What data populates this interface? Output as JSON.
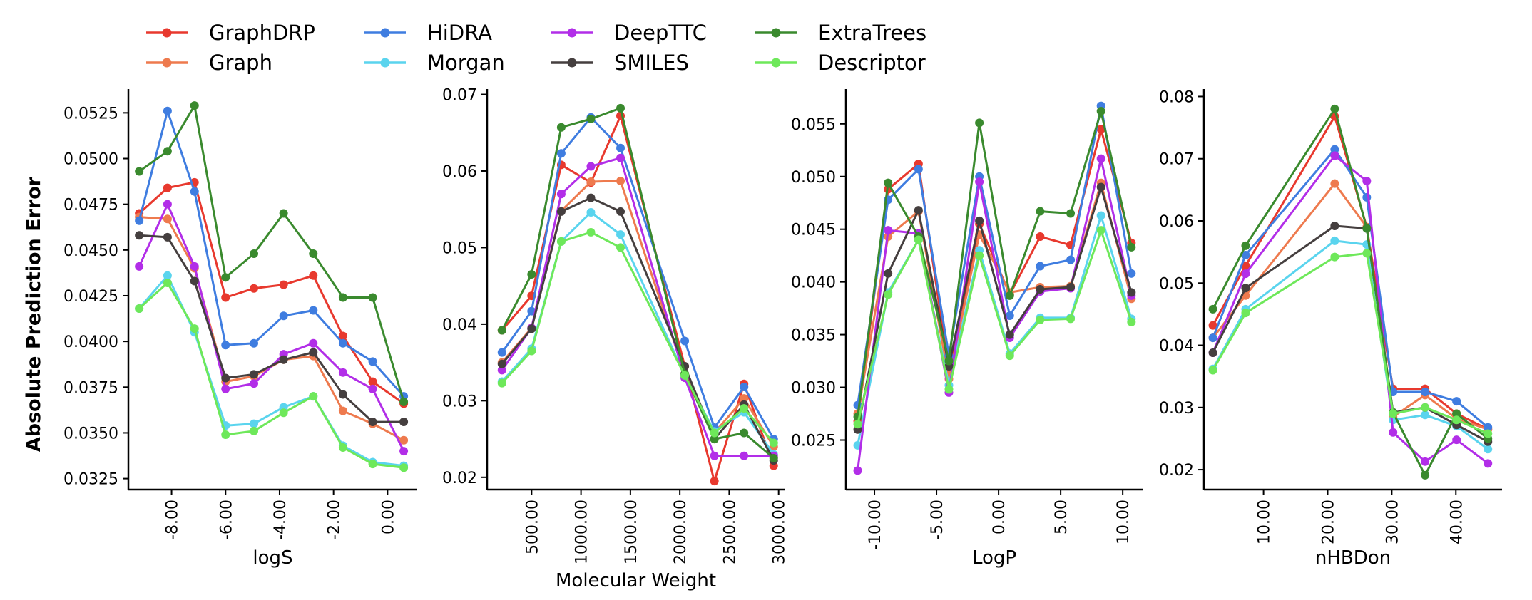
{
  "figure": {
    "ylabel": "Absolute Prediction Error"
  },
  "series_styles": [
    {
      "name": "GraphDRP",
      "color": "#e8392e"
    },
    {
      "name": "Graph",
      "color": "#ee7a4e"
    },
    {
      "name": "HiDRA",
      "color": "#3f7de0"
    },
    {
      "name": "Morgan",
      "color": "#5ad4ee"
    },
    {
      "name": "DeepTTC",
      "color": "#b22ee8"
    },
    {
      "name": "SMILES",
      "color": "#453f3f"
    },
    {
      "name": "ExtraTrees",
      "color": "#3a8a2e"
    },
    {
      "name": "Descriptor",
      "color": "#6ee85a"
    }
  ],
  "chart_data": [
    {
      "type": "line",
      "xlabel": "logS",
      "ylabel": "Absolute Prediction Error",
      "xlim": [
        -9.6,
        1.1
      ],
      "ylim": [
        0.0319,
        0.0538
      ],
      "xticks": [
        -8,
        -6,
        -4,
        -2,
        0
      ],
      "xtick_labels": [
        "-8.00",
        "-6.00",
        "-4.00",
        "-2.00",
        "0.00"
      ],
      "yticks": [
        0.0325,
        0.035,
        0.0375,
        0.04,
        0.0425,
        0.045,
        0.0475,
        0.05,
        0.0525
      ],
      "ytick_labels": [
        "0.0325",
        "0.0350",
        "0.0375",
        "0.0400",
        "0.0425",
        "0.0450",
        "0.0475",
        "0.0500",
        "0.0525"
      ],
      "x": [
        -9.2,
        -8.15,
        -7.15,
        -6.0,
        -4.95,
        -3.85,
        -2.75,
        -1.65,
        -0.55,
        0.6
      ],
      "series": [
        {
          "name": "GraphDRP",
          "values": [
            0.047,
            0.0484,
            0.0487,
            0.0424,
            0.0429,
            0.0431,
            0.0436,
            0.0403,
            0.0378,
            0.0366
          ]
        },
        {
          "name": "Graph",
          "values": [
            0.0468,
            0.0467,
            0.044,
            0.0378,
            0.0381,
            0.039,
            0.0392,
            0.0362,
            0.0355,
            0.0346
          ]
        },
        {
          "name": "HiDRA",
          "values": [
            0.0466,
            0.0526,
            0.0482,
            0.0398,
            0.0399,
            0.0414,
            0.0417,
            0.0399,
            0.0389,
            0.037
          ]
        },
        {
          "name": "Morgan",
          "values": [
            0.0418,
            0.0436,
            0.0405,
            0.0354,
            0.0355,
            0.0364,
            0.037,
            0.0343,
            0.0334,
            0.0332
          ]
        },
        {
          "name": "DeepTTC",
          "values": [
            0.0441,
            0.0475,
            0.0441,
            0.0374,
            0.0377,
            0.0393,
            0.0399,
            0.0383,
            0.0374,
            0.034
          ]
        },
        {
          "name": "SMILES",
          "values": [
            0.0458,
            0.0457,
            0.0433,
            0.038,
            0.0382,
            0.039,
            0.0394,
            0.0371,
            0.0356,
            0.0356
          ]
        },
        {
          "name": "ExtraTrees",
          "values": [
            0.0493,
            0.0504,
            0.0529,
            0.0435,
            0.0448,
            0.047,
            0.0448,
            0.0424,
            0.0424,
            0.0367
          ]
        },
        {
          "name": "Descriptor",
          "values": [
            0.0418,
            0.0432,
            0.0407,
            0.0349,
            0.0351,
            0.0361,
            0.037,
            0.0342,
            0.0333,
            0.0331
          ]
        }
      ]
    },
    {
      "type": "line",
      "xlabel": "Molecular Weight",
      "ylabel": "",
      "xlim": [
        50,
        3060
      ],
      "ylim": [
        0.0184,
        0.0707
      ],
      "xticks": [
        500,
        1000,
        1500,
        2000,
        2500,
        3000
      ],
      "xtick_labels": [
        "500.00",
        "1000.00",
        "1500.00",
        "2000.00",
        "2500.00",
        "3000.00"
      ],
      "yticks": [
        0.02,
        0.03,
        0.04,
        0.05,
        0.06,
        0.07
      ],
      "ytick_labels": [
        "0.02",
        "0.03",
        "0.04",
        "0.05",
        "0.06",
        "0.07"
      ],
      "x": [
        200,
        500,
        800,
        1100,
        1400,
        2050,
        2350,
        2650,
        2950
      ],
      "series": [
        {
          "name": "GraphDRP",
          "values": [
            0.0392,
            0.0437,
            0.0608,
            0.0585,
            0.0672,
            0.0345,
            0.0195,
            0.0322,
            0.0215
          ]
        },
        {
          "name": "Graph",
          "values": [
            0.035,
            0.0395,
            0.0548,
            0.0586,
            0.0587,
            0.0335,
            0.0258,
            0.0303,
            0.024
          ]
        },
        {
          "name": "HiDRA",
          "values": [
            0.0363,
            0.0417,
            0.0623,
            0.067,
            0.063,
            0.0378,
            0.0265,
            0.0318,
            0.025
          ]
        },
        {
          "name": "Morgan",
          "values": [
            0.0325,
            0.0368,
            0.0508,
            0.0546,
            0.0517,
            0.0333,
            0.026,
            0.0285,
            0.023
          ]
        },
        {
          "name": "DeepTTC",
          "values": [
            0.034,
            0.0395,
            0.057,
            0.0606,
            0.0617,
            0.033,
            0.0228,
            0.0228,
            0.0228
          ]
        },
        {
          "name": "SMILES",
          "values": [
            0.0348,
            0.0394,
            0.0547,
            0.0565,
            0.0547,
            0.0345,
            0.025,
            0.0295,
            0.0222
          ]
        },
        {
          "name": "ExtraTrees",
          "values": [
            0.0392,
            0.0465,
            0.0657,
            0.0668,
            0.0682,
            0.0335,
            0.025,
            0.0258,
            0.0225
          ]
        },
        {
          "name": "Descriptor",
          "values": [
            0.0323,
            0.0365,
            0.0508,
            0.052,
            0.05,
            0.0333,
            0.0258,
            0.029,
            0.0245
          ]
        }
      ]
    },
    {
      "type": "line",
      "xlabel": "LogP",
      "ylabel": "",
      "xlim": [
        -12.3,
        11.6
      ],
      "ylim": [
        0.0203,
        0.0583
      ],
      "xticks": [
        -10,
        -5,
        0,
        5,
        10
      ],
      "xtick_labels": [
        "-10.00",
        "-5.00",
        "0.00",
        "5.00",
        "10.00"
      ],
      "yticks": [
        0.025,
        0.03,
        0.035,
        0.04,
        0.045,
        0.05,
        0.055
      ],
      "ytick_labels": [
        "0.025",
        "0.030",
        "0.035",
        "0.040",
        "0.045",
        "0.050",
        "0.055"
      ],
      "x": [
        -11.35,
        -8.9,
        -6.45,
        -4.0,
        -1.55,
        0.9,
        3.35,
        5.8,
        8.25,
        10.7
      ],
      "series": [
        {
          "name": "GraphDRP",
          "values": [
            0.0268,
            0.0488,
            0.0512,
            0.0315,
            0.0455,
            0.0388,
            0.0443,
            0.0435,
            0.0545,
            0.0437
          ]
        },
        {
          "name": "Graph",
          "values": [
            0.0275,
            0.0443,
            0.0467,
            0.0308,
            0.0445,
            0.039,
            0.0395,
            0.0396,
            0.0494,
            0.0384
          ]
        },
        {
          "name": "HiDRA",
          "values": [
            0.0283,
            0.0478,
            0.0507,
            0.033,
            0.05,
            0.0368,
            0.0415,
            0.0421,
            0.0567,
            0.0408
          ]
        },
        {
          "name": "Morgan",
          "values": [
            0.0245,
            0.039,
            0.044,
            0.0302,
            0.043,
            0.0332,
            0.0366,
            0.0366,
            0.0463,
            0.0365
          ]
        },
        {
          "name": "DeepTTC",
          "values": [
            0.0221,
            0.0449,
            0.0446,
            0.0295,
            0.0495,
            0.0347,
            0.0391,
            0.0394,
            0.0517,
            0.0387
          ]
        },
        {
          "name": "SMILES",
          "values": [
            0.026,
            0.0408,
            0.0468,
            0.032,
            0.0458,
            0.035,
            0.0393,
            0.0395,
            0.049,
            0.039
          ]
        },
        {
          "name": "ExtraTrees",
          "values": [
            0.0272,
            0.0494,
            0.0443,
            0.0325,
            0.0551,
            0.0387,
            0.0467,
            0.0465,
            0.0562,
            0.0433
          ]
        },
        {
          "name": "Descriptor",
          "values": [
            0.0265,
            0.0388,
            0.044,
            0.0298,
            0.0425,
            0.033,
            0.0364,
            0.0365,
            0.0449,
            0.0362
          ]
        }
      ]
    },
    {
      "type": "line",
      "xlabel": "nHBDon",
      "ylabel": "",
      "xlim": [
        0.7,
        47.2
      ],
      "ylim": [
        0.0168,
        0.0812
      ],
      "xticks": [
        10,
        20,
        30,
        40
      ],
      "xtick_labels": [
        "10.00",
        "20.00",
        "30.00",
        "40.00"
      ],
      "yticks": [
        0.02,
        0.03,
        0.04,
        0.05,
        0.06,
        0.07,
        0.08
      ],
      "ytick_labels": [
        "0.02",
        "0.03",
        "0.04",
        "0.05",
        "0.06",
        "0.07",
        "0.08"
      ],
      "x": [
        2.1,
        7.2,
        21.1,
        26.1,
        30.2,
        35.2,
        40.1,
        45.0
      ],
      "series": [
        {
          "name": "GraphDRP",
          "values": [
            0.0432,
            0.0528,
            0.0768,
            0.059,
            0.033,
            0.033,
            0.029,
            0.0265
          ]
        },
        {
          "name": "Graph",
          "values": [
            0.0412,
            0.048,
            0.066,
            0.059,
            0.0285,
            0.032,
            0.0282,
            0.0265
          ]
        },
        {
          "name": "HiDRA",
          "values": [
            0.0412,
            0.0545,
            0.0715,
            0.0638,
            0.0325,
            0.0325,
            0.031,
            0.0268
          ]
        },
        {
          "name": "Morgan",
          "values": [
            0.0362,
            0.0458,
            0.0568,
            0.0562,
            0.028,
            0.0288,
            0.027,
            0.0233
          ]
        },
        {
          "name": "DeepTTC",
          "values": [
            0.0388,
            0.0515,
            0.0705,
            0.0664,
            0.026,
            0.0213,
            0.0248,
            0.021
          ]
        },
        {
          "name": "SMILES",
          "values": [
            0.0388,
            0.0492,
            0.0592,
            0.0588,
            0.0292,
            0.03,
            0.0272,
            0.0245
          ]
        },
        {
          "name": "ExtraTrees",
          "values": [
            0.0458,
            0.056,
            0.078,
            0.0588,
            0.0292,
            0.0191,
            0.029,
            0.025
          ]
        },
        {
          "name": "Descriptor",
          "values": [
            0.036,
            0.0452,
            0.0542,
            0.0548,
            0.029,
            0.03,
            0.028,
            0.0258
          ]
        }
      ]
    }
  ]
}
